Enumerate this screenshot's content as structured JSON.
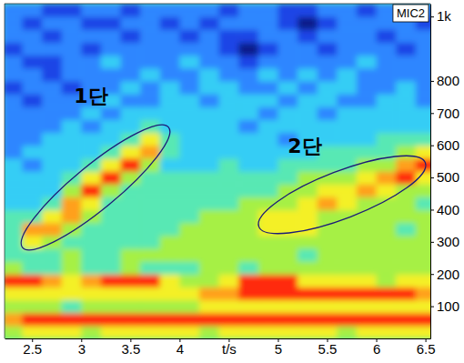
{
  "chart_data": {
    "type": "heatmap",
    "title": "MIC2",
    "annotations": [
      "1단",
      "2단"
    ],
    "x_bins": [
      2.2,
      2.4,
      2.6,
      2.8,
      3.0,
      3.2,
      3.4,
      3.6,
      3.8,
      4.0,
      4.2,
      4.4,
      4.6,
      4.8,
      5.0,
      5.2,
      5.4,
      5.6,
      5.8,
      6.0,
      6.2,
      6.4,
      6.6
    ],
    "y_bins": [
      0,
      40,
      80,
      120,
      160,
      200,
      240,
      280,
      320,
      360,
      400,
      440,
      480,
      520,
      560,
      600,
      640,
      680,
      720,
      760,
      800,
      840,
      880,
      920,
      960,
      1000,
      1040
    ],
    "cells": [
      [
        6,
        7,
        7,
        7,
        6,
        7,
        7,
        7,
        7,
        7,
        6,
        7,
        7,
        7,
        7,
        7,
        7,
        6,
        7,
        7,
        7,
        7
      ],
      [
        8,
        9,
        9,
        9,
        9,
        9,
        9,
        9,
        9,
        9,
        9,
        9,
        9,
        9,
        9,
        9,
        9,
        9,
        9,
        9,
        9,
        9
      ],
      [
        6,
        6,
        6,
        5,
        6,
        6,
        6,
        6,
        6,
        6,
        7,
        7,
        7,
        7,
        7,
        7,
        7,
        7,
        7,
        7,
        7,
        7
      ],
      [
        7,
        7,
        7,
        7,
        7,
        7,
        7,
        7,
        7,
        7,
        8,
        8,
        9,
        9,
        9,
        9,
        9,
        9,
        9,
        9,
        9,
        8
      ],
      [
        9,
        9,
        8,
        7,
        8,
        9,
        9,
        9,
        7,
        6,
        6,
        7,
        9,
        9,
        9,
        7,
        7,
        7,
        7,
        6,
        7,
        7
      ],
      [
        6,
        5,
        5,
        6,
        5,
        5,
        6,
        5,
        5,
        5,
        6,
        6,
        5,
        6,
        6,
        6,
        6,
        6,
        6,
        6,
        6,
        6
      ],
      [
        5,
        5,
        5,
        6,
        5,
        5,
        6,
        6,
        6,
        6,
        6,
        6,
        6,
        6,
        6,
        5,
        6,
        6,
        6,
        6,
        6,
        6
      ],
      [
        5,
        7,
        6,
        5,
        5,
        5,
        5,
        5,
        6,
        6,
        6,
        6,
        6,
        6,
        6,
        6,
        6,
        6,
        6,
        6,
        6,
        6
      ],
      [
        5,
        8,
        8,
        6,
        5,
        5,
        5,
        5,
        5,
        6,
        6,
        6,
        6,
        7,
        7,
        7,
        6,
        6,
        6,
        6,
        5,
        6
      ],
      [
        5,
        5,
        7,
        8,
        6,
        5,
        5,
        5,
        5,
        5,
        6,
        6,
        6,
        7,
        7,
        7,
        6,
        6,
        6,
        6,
        6,
        6
      ],
      [
        4,
        4,
        5,
        8,
        7,
        5,
        5,
        5,
        5,
        5,
        5,
        5,
        6,
        6,
        6,
        7,
        8,
        7,
        6,
        6,
        6,
        5
      ],
      [
        4,
        4,
        4,
        6,
        9,
        6,
        5,
        5,
        5,
        5,
        5,
        5,
        5,
        5,
        6,
        6,
        7,
        7,
        8,
        7,
        6,
        6
      ],
      [
        4,
        4,
        4,
        5,
        7,
        9,
        6,
        5,
        5,
        5,
        5,
        5,
        5,
        5,
        5,
        6,
        6,
        6,
        7,
        8,
        9,
        7
      ],
      [
        4,
        3,
        4,
        4,
        5,
        7,
        9,
        6,
        4,
        4,
        4,
        5,
        4,
        4,
        5,
        5,
        5,
        5,
        6,
        6,
        8,
        9
      ],
      [
        3,
        4,
        4,
        4,
        4,
        5,
        7,
        8,
        5,
        4,
        4,
        4,
        4,
        4,
        4,
        4,
        5,
        5,
        5,
        5,
        6,
        7
      ],
      [
        3,
        3,
        4,
        4,
        4,
        4,
        5,
        7,
        5,
        4,
        4,
        4,
        4,
        4,
        3,
        4,
        4,
        4,
        4,
        5,
        5,
        5
      ],
      [
        3,
        3,
        3,
        4,
        3,
        4,
        4,
        5,
        4,
        4,
        4,
        4,
        3,
        4,
        4,
        4,
        4,
        4,
        4,
        4,
        4,
        4
      ],
      [
        3,
        3,
        3,
        3,
        4,
        3,
        4,
        4,
        4,
        4,
        4,
        4,
        4,
        3,
        4,
        4,
        3,
        4,
        4,
        4,
        4,
        4
      ],
      [
        3,
        2,
        3,
        3,
        3,
        4,
        3,
        3,
        4,
        4,
        3,
        4,
        4,
        4,
        3,
        4,
        4,
        3,
        3,
        4,
        4,
        3
      ],
      [
        2,
        3,
        3,
        2,
        3,
        3,
        4,
        3,
        4,
        3,
        4,
        4,
        3,
        3,
        4,
        3,
        4,
        4,
        3,
        3,
        4,
        3
      ],
      [
        3,
        3,
        2,
        3,
        3,
        3,
        3,
        4,
        3,
        3,
        4,
        3,
        3,
        4,
        3,
        4,
        3,
        4,
        3,
        3,
        3,
        3
      ],
      [
        3,
        2,
        2,
        3,
        3,
        4,
        3,
        3,
        3,
        4,
        3,
        3,
        2,
        3,
        3,
        3,
        3,
        3,
        4,
        3,
        3,
        3
      ],
      [
        2,
        3,
        3,
        3,
        2,
        3,
        3,
        3,
        3,
        3,
        3,
        2,
        1,
        2,
        3,
        3,
        2,
        3,
        3,
        3,
        2,
        3
      ],
      [
        3,
        3,
        2,
        3,
        3,
        3,
        2,
        3,
        3,
        2,
        3,
        2,
        2,
        3,
        3,
        2,
        3,
        3,
        3,
        2,
        3,
        3
      ],
      [
        3,
        2,
        3,
        3,
        2,
        2,
        3,
        3,
        2,
        3,
        2,
        3,
        3,
        3,
        2,
        1,
        2,
        3,
        3,
        3,
        3,
        2
      ],
      [
        3,
        3,
        2,
        2,
        3,
        3,
        2,
        3,
        3,
        3,
        3,
        2,
        3,
        3,
        2,
        2,
        3,
        3,
        2,
        3,
        3,
        3
      ]
    ],
    "xlim": [
      2.22,
      6.55
    ],
    "ylim": [
      0,
      1040
    ],
    "xticks": [
      2.5,
      3,
      3.5,
      4,
      {
        "value": 4.5,
        "label": "t/s"
      },
      5,
      5.5,
      6,
      6.5
    ],
    "yticks": [
      100,
      200,
      300,
      400,
      500,
      600,
      700,
      800,
      {
        "value": 1000,
        "label": "1k"
      }
    ],
    "grid": false
  }
}
